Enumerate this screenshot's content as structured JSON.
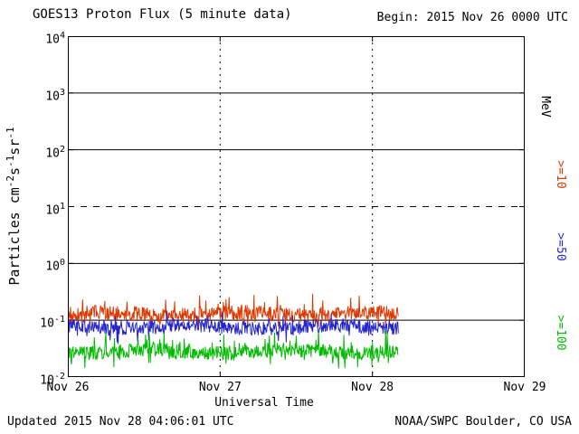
{
  "header": {
    "title": "GOES13 Proton Flux (5 minute data)",
    "begin": "Begin: 2015 Nov 26 0000 UTC"
  },
  "axes": {
    "xlabel": "Universal Time",
    "ylabel_plain": "Particles cm-2 s-1 sr-1",
    "ylabel_parts": [
      {
        "text": "Particles cm"
      },
      {
        "sup": "-2"
      },
      {
        "text": "s"
      },
      {
        "sup": "-1"
      },
      {
        "text": "sr"
      },
      {
        "sup": "-1"
      }
    ]
  },
  "right_legend": {
    "unit_label": "MeV",
    "entries": [
      {
        "label": ">=10",
        "color": "#dd3800"
      },
      {
        "label": ">=50",
        "color": "#2424cc"
      },
      {
        "label": ">=100",
        "color": "#00bb00"
      }
    ]
  },
  "footer": {
    "updated": "Updated 2015 Nov 28 04:06:01 UTC",
    "credit": "NOAA/SWPC Boulder, CO USA"
  },
  "chart_data": {
    "type": "line",
    "title": "GOES13 Proton Flux (5 minute data)",
    "xlabel": "Universal Time",
    "ylabel": "Particles cm-2 s-1 sr-1",
    "x_axis": {
      "start": "2015 Nov 26 0000 UTC",
      "end": "2015 Nov 29 0000 UTC",
      "span_days": 3,
      "tick_labels": [
        "Nov 26",
        "Nov 27",
        "Nov 28",
        "Nov 29"
      ]
    },
    "y_axis": {
      "scale": "log",
      "min": 0.01,
      "max": 10000,
      "max_exp": 4,
      "min_exp": -2,
      "decade_exponents": [
        4,
        3,
        2,
        1,
        0,
        -1,
        -2
      ]
    },
    "gridlines": {
      "solid_y_exponents": [
        3,
        2,
        0,
        -1
      ],
      "dashed_y_exponents": [
        1
      ],
      "dotted_x_day_marks": [
        1,
        2
      ]
    },
    "data_end_days": 2.17,
    "samples_per_day": 288,
    "seed": 20151126,
    "series": [
      {
        "name": ">=10 MeV",
        "color": "#dd3800",
        "baseline_flux": 0.13,
        "typical_range": [
          0.08,
          0.4
        ],
        "base_log10": -0.89,
        "noise_log10": 0.13,
        "spike_up_log10": 0.3,
        "spike_down_log10": 0.18,
        "spike_prob": 0.08
      },
      {
        "name": ">=50 MeV",
        "color": "#2424cc",
        "baseline_flux": 0.075,
        "typical_range": [
          0.04,
          0.15
        ],
        "base_log10": -1.12,
        "noise_log10": 0.12,
        "spike_up_log10": 0.22,
        "spike_down_log10": 0.18,
        "spike_prob": 0.08
      },
      {
        "name": ">=100 MeV",
        "color": "#00bb00",
        "baseline_flux": 0.028,
        "typical_range": [
          0.013,
          0.07
        ],
        "base_log10": -1.55,
        "noise_log10": 0.13,
        "spike_up_log10": 0.28,
        "spike_down_log10": 0.2,
        "spike_prob": 0.08
      }
    ]
  }
}
